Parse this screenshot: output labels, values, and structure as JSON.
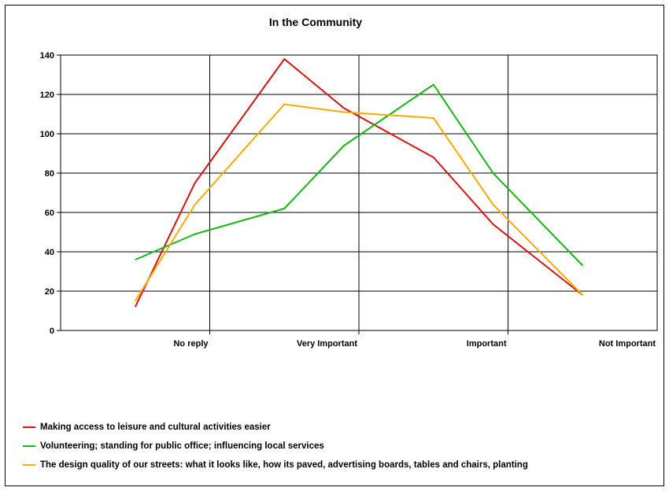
{
  "chart_data": {
    "type": "line",
    "title": "In the Community",
    "categories": [
      "No reply",
      "Very Important",
      "Important",
      "Not Important"
    ],
    "ylim": [
      0,
      140
    ],
    "yticks": [
      0,
      20,
      40,
      60,
      80,
      100,
      120,
      140
    ],
    "grid": true,
    "legend_position": "bottom-left",
    "series": [
      {
        "name": "Making access to leisure and cultural activities easier",
        "color": "#dd1111",
        "x": [
          0,
          0.4,
          1.0,
          1.4,
          2.0,
          2.4,
          3.0
        ],
        "y": [
          12,
          75,
          138,
          113,
          88,
          54,
          18
        ]
      },
      {
        "name": "Volunteering; standing for public office; influencing local services",
        "color": "#11bb11",
        "x": [
          0,
          0.4,
          1.0,
          1.4,
          2.0,
          2.4,
          3.0
        ],
        "y": [
          36,
          49,
          62,
          94,
          125,
          80,
          33
        ]
      },
      {
        "name": "The design quality of our streets: what it looks like, how its paved, advertising boards, tables and chairs, planting",
        "color": "#ffaa00",
        "x": [
          0,
          0.4,
          1.0,
          1.4,
          2.0,
          2.4,
          3.0
        ],
        "y": [
          15,
          64,
          115,
          111,
          108,
          64,
          18
        ]
      }
    ]
  }
}
